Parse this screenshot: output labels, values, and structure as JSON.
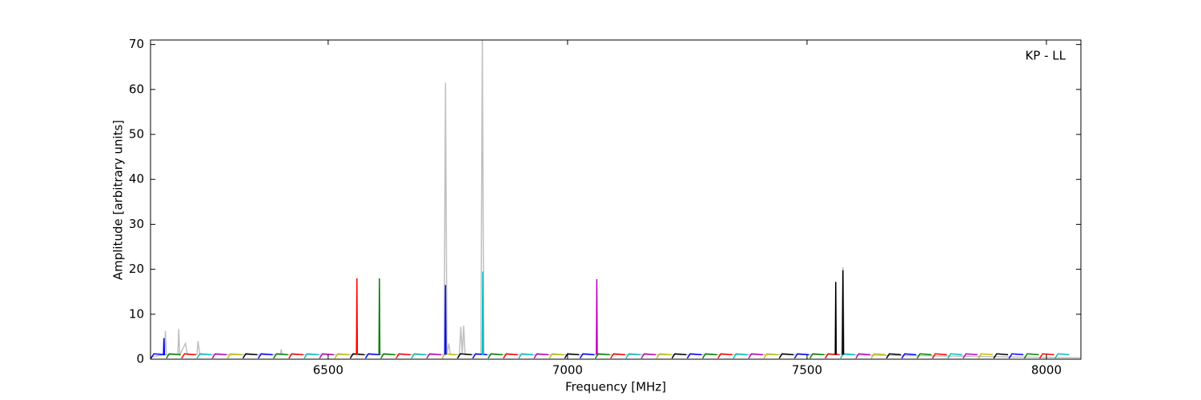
{
  "chart_data": {
    "type": "line",
    "annotation": "KP - LL",
    "xlabel": "Frequency [MHz]",
    "ylabel": "Amplitude [arbitrary units]",
    "xlim": [
      6129,
      8072
    ],
    "ylim": [
      0,
      71
    ],
    "xticks": [
      6500,
      7000,
      7500,
      8000
    ],
    "yticks": [
      0,
      10,
      20,
      30,
      40,
      50,
      60,
      70
    ],
    "series": [
      {
        "color": "#c0c0c0",
        "x": [
          6130,
          6158,
          6160,
          6162,
          6186,
          6188,
          6190,
          6202,
          6206,
          6226,
          6228,
          6232,
          6400,
          6402,
          6404,
          6742,
          6745,
          6748,
          6752,
          6755,
          6774,
          6777,
          6780,
          6783,
          6786,
          6819,
          6822,
          6825,
          7572,
          7575,
          7578,
          8070
        ],
        "values": [
          0.5,
          1,
          6.3,
          1,
          1,
          6.7,
          1,
          3.5,
          1,
          1,
          4,
          1,
          1,
          2.2,
          1,
          1,
          61.5,
          1,
          3.5,
          1,
          1,
          7.2,
          1,
          7.5,
          1,
          1,
          71,
          1,
          1,
          20.5,
          1,
          0.3
        ]
      },
      {
        "color": "#0000ff",
        "x": [
          6130,
          6136,
          6160,
          null,
          6354,
          6360,
          6384,
          null,
          6578,
          6584,
          6608,
          null,
          6802,
          6808,
          6832,
          null,
          7026,
          7032,
          7056,
          null,
          7250,
          7256,
          7280,
          null,
          7474,
          7480,
          7504,
          null,
          7698,
          7704,
          7728,
          null,
          7922,
          7928,
          7952
        ],
        "values": [
          0.2,
          1.2,
          1,
          null,
          0.2,
          1.2,
          1,
          null,
          0.2,
          1.2,
          1,
          null,
          0.2,
          1.2,
          1,
          null,
          0.2,
          1.2,
          1,
          null,
          0.2,
          1.2,
          1,
          null,
          0.2,
          1.2,
          1,
          null,
          0.2,
          1.2,
          1,
          null,
          0.2,
          1.2,
          1
        ]
      },
      {
        "color": "#008000",
        "x": [
          6162,
          6168,
          6192,
          null,
          6386,
          6392,
          6416,
          null,
          6610,
          6616,
          6640,
          null,
          6834,
          6840,
          6864,
          null,
          7058,
          7064,
          7088,
          null,
          7282,
          7288,
          7312,
          null,
          7506,
          7512,
          7536,
          null,
          7730,
          7736,
          7760,
          null,
          7954,
          7960,
          7984
        ],
        "values": [
          0.2,
          1.2,
          1,
          null,
          0.2,
          1.2,
          1,
          null,
          0.2,
          1.2,
          1,
          null,
          0.2,
          1.2,
          1,
          null,
          0.2,
          1.2,
          1,
          null,
          0.2,
          1.2,
          1,
          null,
          0.2,
          1.2,
          1,
          null,
          0.2,
          1.2,
          1,
          null,
          0.2,
          1.2,
          1
        ]
      },
      {
        "color": "#ff0000",
        "x": [
          6194,
          6200,
          6224,
          null,
          6418,
          6424,
          6448,
          null,
          6642,
          6648,
          6672,
          null,
          6866,
          6872,
          6896,
          null,
          7090,
          7096,
          7120,
          null,
          7314,
          7320,
          7344,
          null,
          7538,
          7544,
          7568,
          null,
          7762,
          7768,
          7792,
          null,
          7986,
          7992,
          8016
        ],
        "values": [
          0.2,
          1.2,
          1,
          null,
          0.2,
          1.2,
          1,
          null,
          0.2,
          1.2,
          1,
          null,
          0.2,
          1.2,
          1,
          null,
          0.2,
          1.2,
          1,
          null,
          0.2,
          1.2,
          1,
          null,
          0.2,
          1.2,
          1,
          null,
          0.2,
          1.2,
          1,
          null,
          0.2,
          1.2,
          1
        ]
      },
      {
        "color": "#00bfbf",
        "x": [
          6226,
          6232,
          6256,
          null,
          6450,
          6456,
          6480,
          null,
          6674,
          6680,
          6704,
          null,
          6898,
          6904,
          6928,
          null,
          7122,
          7128,
          7152,
          null,
          7346,
          7352,
          7376,
          null,
          7570,
          7576,
          7600,
          null,
          7794,
          7800,
          7824,
          null,
          8018,
          8024,
          8048
        ],
        "values": [
          0.2,
          1.2,
          1,
          null,
          0.2,
          1.2,
          1,
          null,
          0.2,
          1.2,
          1,
          null,
          0.2,
          1.2,
          1,
          null,
          0.2,
          1.2,
          1,
          null,
          0.2,
          1.2,
          1,
          null,
          0.2,
          1.2,
          1,
          null,
          0.2,
          1.2,
          1,
          null,
          0.2,
          1.2,
          1
        ]
      },
      {
        "color": "#bf00bf",
        "x": [
          6258,
          6264,
          6288,
          null,
          6482,
          6488,
          6512,
          null,
          6706,
          6712,
          6736,
          null,
          6930,
          6936,
          6960,
          null,
          7154,
          7160,
          7184,
          null,
          7378,
          7384,
          7408,
          null,
          7602,
          7608,
          7632,
          null,
          7826,
          7832,
          7856
        ],
        "values": [
          0.2,
          1.2,
          1,
          null,
          0.2,
          1.2,
          1,
          null,
          0.2,
          1.2,
          1,
          null,
          0.2,
          1.2,
          1,
          null,
          0.2,
          1.2,
          1,
          null,
          0.2,
          1.2,
          1,
          null,
          0.2,
          1.2,
          1,
          null,
          0.2,
          1.2,
          1
        ]
      },
      {
        "color": "#bfbf00",
        "x": [
          6290,
          6296,
          6320,
          null,
          6514,
          6520,
          6544,
          null,
          6738,
          6744,
          6768,
          null,
          6962,
          6968,
          6992,
          null,
          7186,
          7192,
          7216,
          null,
          7410,
          7416,
          7440,
          null,
          7634,
          7640,
          7664,
          null,
          7858,
          7864,
          7888
        ],
        "values": [
          0.2,
          1.2,
          1,
          null,
          0.2,
          1.2,
          1,
          null,
          0.2,
          1.2,
          1,
          null,
          0.2,
          1.2,
          1,
          null,
          0.2,
          1.2,
          1,
          null,
          0.2,
          1.2,
          1,
          null,
          0.2,
          1.2,
          1,
          null,
          0.2,
          1.2,
          1
        ]
      },
      {
        "color": "#000000",
        "x": [
          6322,
          6328,
          6352,
          null,
          6546,
          6552,
          6576,
          null,
          6770,
          6776,
          6800,
          null,
          6994,
          7000,
          7024,
          null,
          7218,
          7224,
          7248,
          null,
          7442,
          7448,
          7472,
          null,
          7666,
          7672,
          7696,
          null,
          7890,
          7896,
          7920
        ],
        "values": [
          0.2,
          1.2,
          1,
          null,
          0.2,
          1.2,
          1,
          null,
          0.2,
          1.2,
          1,
          null,
          0.2,
          1.2,
          1,
          null,
          0.2,
          1.2,
          1,
          null,
          0.2,
          1.2,
          1,
          null,
          0.2,
          1.2,
          1,
          null,
          0.2,
          1.2,
          1
        ]
      },
      {
        "color": "#ff0000",
        "x": [
          6559,
          6560,
          6561
        ],
        "values": [
          1,
          18,
          1
        ]
      },
      {
        "color": "#008000",
        "x": [
          6606,
          6607,
          6608
        ],
        "values": [
          1,
          18,
          1
        ]
      },
      {
        "color": "#0000ff",
        "x": [
          6744,
          6745,
          6746
        ],
        "values": [
          1,
          16.5,
          1
        ]
      },
      {
        "color": "#00bfbf",
        "x": [
          6822,
          6823,
          6824
        ],
        "values": [
          1,
          19.5,
          1
        ]
      },
      {
        "color": "#bf00bf",
        "x": [
          7060,
          7061,
          7062
        ],
        "values": [
          1,
          17.8,
          1
        ]
      },
      {
        "color": "#000000",
        "x": [
          7559,
          7560,
          7561
        ],
        "values": [
          1,
          17.2,
          1
        ]
      },
      {
        "color": "#000000",
        "x": [
          7574,
          7575,
          7576
        ],
        "values": [
          1,
          19.8,
          1
        ]
      },
      {
        "color": "#0000ff",
        "x": [
          6156,
          6157,
          6158
        ],
        "values": [
          1,
          4.7,
          1
        ]
      }
    ]
  }
}
